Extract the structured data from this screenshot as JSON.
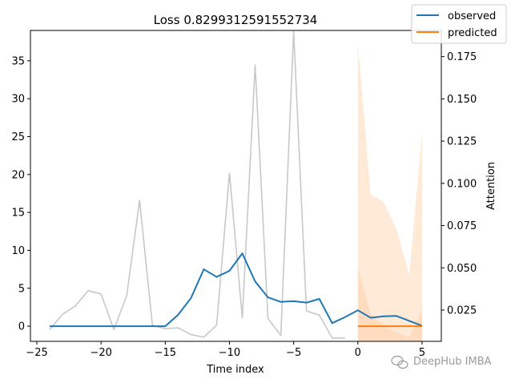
{
  "chart_data": {
    "type": "line",
    "title": "Loss 0.8299312591552734",
    "xlabel": "Time index",
    "ylabel_left": "",
    "ylabel_right": "Attention",
    "xlim": [
      -25.5,
      6.5
    ],
    "ylim_left": [
      -2,
      39
    ],
    "ylim_right": [
      0.0065,
      0.1905
    ],
    "xticks": [
      -25,
      -20,
      -15,
      -10,
      -5,
      0,
      5
    ],
    "yticks_left": [
      0,
      5,
      10,
      15,
      20,
      25,
      30,
      35
    ],
    "yticks_right": [
      0.025,
      0.05,
      0.075,
      0.1,
      0.125,
      0.15,
      0.175
    ],
    "yticks_right_labels": [
      "0.025",
      "0.050",
      "0.075",
      "0.100",
      "0.125",
      "0.150",
      "0.175"
    ],
    "legend_position": "top-right",
    "grid": false,
    "series": [
      {
        "name": "observed",
        "axis": "left",
        "color": "#1f77b4",
        "x": [
          -24,
          -23,
          -22,
          -21,
          -20,
          -19,
          -18,
          -17,
          -16,
          -15,
          -14,
          -13,
          -12,
          -11,
          -10,
          -9,
          -8,
          -7,
          -6,
          -5,
          -4,
          -3,
          -2,
          -1,
          0,
          1,
          2,
          3,
          4,
          5
        ],
        "values": [
          0,
          0,
          0,
          0,
          0,
          0,
          0,
          0,
          0,
          0,
          1.5,
          3.7,
          7.5,
          6.5,
          7.3,
          9.6,
          5.9,
          3.8,
          3.2,
          3.3,
          3.1,
          3.6,
          0.4,
          1.2,
          2.1,
          1.1,
          1.3,
          1.35,
          0.7,
          0.05
        ]
      },
      {
        "name": "predicted",
        "axis": "left",
        "color": "#ff7f0e",
        "x": [
          0,
          1,
          2,
          3,
          4,
          5
        ],
        "values": [
          0,
          0,
          0,
          0,
          0,
          0
        ]
      },
      {
        "name": "",
        "axis": "right",
        "color": "#c8c8c8",
        "x": [
          -24,
          -23,
          -22,
          -21,
          -20,
          -19,
          -18,
          -17,
          -16,
          -15,
          -14,
          -13,
          -12,
          -11,
          -10,
          -9,
          -8,
          -7,
          -6,
          -5,
          -4,
          -3,
          -2,
          -1
        ],
        "values": [
          0.0135,
          0.0225,
          0.0275,
          0.0365,
          0.0345,
          0.0135,
          0.0335,
          0.09,
          0.016,
          0.014,
          0.0145,
          0.0105,
          0.009,
          0.016,
          0.106,
          0.0205,
          0.17,
          0.02,
          0.01,
          0.19,
          0.0245,
          0.022,
          0.0085,
          0.0085
        ]
      }
    ],
    "attention_bands": {
      "color": "#ff7f0e",
      "x": [
        0,
        1,
        2,
        3,
        4,
        5
      ],
      "outer_upper": [
        0.183,
        0.093,
        0.089,
        0.073,
        0.046,
        0.13
      ],
      "outer_lower": [
        0.0065,
        0.0065,
        0.0065,
        0.0065,
        0.0065,
        0.0065
      ],
      "inner_upper": [
        0.05,
        0.0225,
        0.016,
        0.012,
        0.009,
        0.025
      ],
      "inner_lower": [
        0.0065,
        0.0065,
        0.0065,
        0.0065,
        0.0065,
        0.0065
      ]
    }
  },
  "watermark": {
    "text": "DeepHub IMBA",
    "icon": "wechat-icon"
  }
}
